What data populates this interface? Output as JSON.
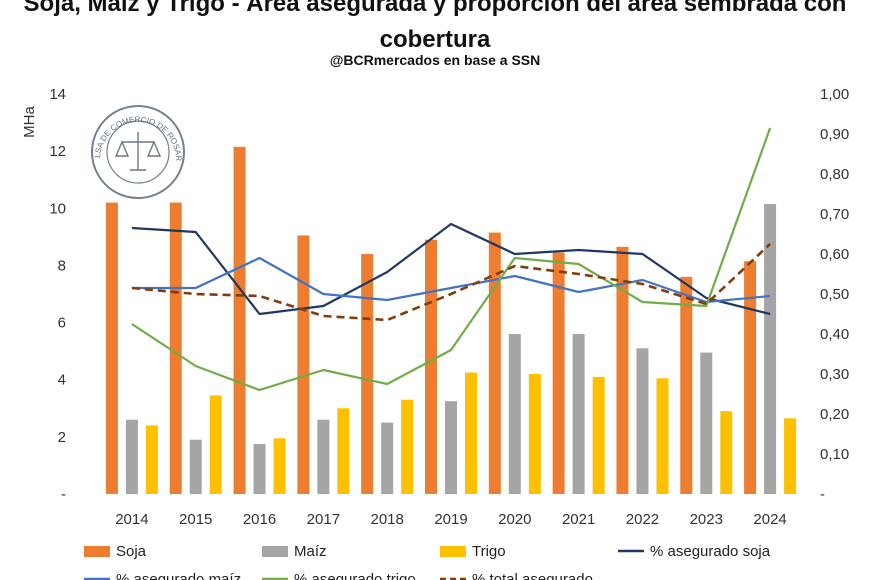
{
  "chart_data": {
    "type": "bar",
    "title": "Soja, Maíz y Trigo - Área asegurada y proporción del área sembrada con cobertura",
    "subtitle": "@BCRmercados en base a SSN",
    "ylabel": "MHa",
    "categories": [
      "2014",
      "2015",
      "2016",
      "2017",
      "2018",
      "2019",
      "2020",
      "2021",
      "2022",
      "2023",
      "2024"
    ],
    "ylim": [
      0,
      14
    ],
    "y2lim": [
      0,
      1.0
    ],
    "yticks": [
      "-",
      "2",
      "4",
      "6",
      "8",
      "10",
      "12",
      "14"
    ],
    "y2ticks": [
      "-",
      "0,10",
      "0,20",
      "0,30",
      "0,40",
      "0,50",
      "0,60",
      "0,70",
      "0,80",
      "0,90",
      "1,00"
    ],
    "bar_series": [
      {
        "name": "Soja",
        "color": "#ED7D31",
        "values": [
          10.2,
          10.2,
          12.15,
          9.05,
          8.4,
          8.9,
          9.15,
          8.45,
          8.65,
          7.6,
          8.15
        ]
      },
      {
        "name": "Maíz",
        "color": "#A5A5A5",
        "values": [
          2.6,
          1.9,
          1.75,
          2.6,
          2.5,
          3.25,
          5.6,
          5.6,
          5.1,
          4.95,
          10.15
        ]
      },
      {
        "name": "Trigo",
        "color": "#FFC000",
        "values": [
          2.4,
          3.45,
          1.95,
          3.0,
          3.3,
          4.25,
          4.2,
          4.1,
          4.05,
          2.9,
          2.65
        ]
      }
    ],
    "line_series": [
      {
        "name": "% asegurado soja",
        "color": "#1F3864",
        "style": "solid",
        "values": [
          0.665,
          0.655,
          0.45,
          0.47,
          0.555,
          0.675,
          0.6,
          0.61,
          0.6,
          0.49,
          0.45
        ]
      },
      {
        "name": "% asegurado maíz",
        "color": "#4472C4",
        "style": "solid",
        "values": [
          0.515,
          0.515,
          0.59,
          0.5,
          0.485,
          0.515,
          0.545,
          0.505,
          0.535,
          0.48,
          0.495
        ]
      },
      {
        "name": "% asegurado trigo",
        "color": "#70AD47",
        "style": "solid",
        "values": [
          0.425,
          0.32,
          0.26,
          0.31,
          0.275,
          0.36,
          0.59,
          0.575,
          0.48,
          0.47,
          0.915
        ]
      },
      {
        "name": "% total asegurado",
        "color": "#843C0C",
        "style": "dashed",
        "values": [
          0.515,
          0.5,
          0.495,
          0.445,
          0.435,
          0.5,
          0.57,
          0.55,
          0.525,
          0.475,
          0.625
        ]
      }
    ],
    "legend": {
      "placement": "bottom",
      "row1": [
        "Soja",
        "Maíz",
        "Trigo",
        "% asegurado soja"
      ],
      "row2": [
        "% asegurado maíz",
        "% asegurado trigo",
        "% total asegurado"
      ]
    },
    "grid": false
  },
  "watermark": {
    "name": "bolsa-de-comercio-de-rosario-seal",
    "text": "BOLSA DE COMERCIO DE ROSARIO",
    "color": "#3b4a63"
  }
}
